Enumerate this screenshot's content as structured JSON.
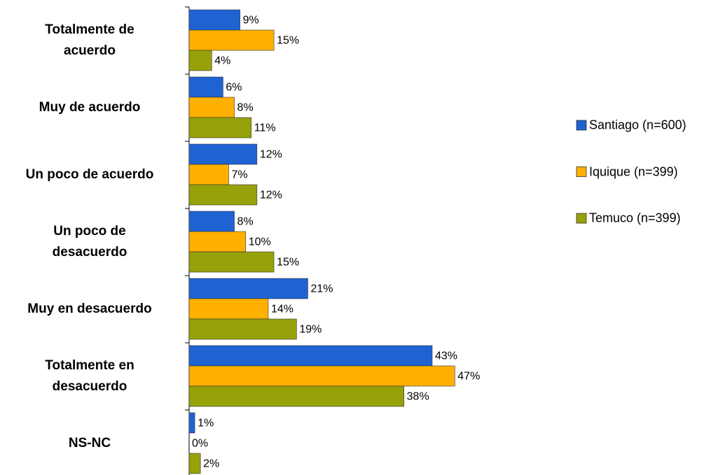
{
  "chart_data": {
    "type": "barh",
    "categories": [
      "Totalmente de\nacuerdo",
      "Muy de acuerdo",
      "Un poco de acuerdo",
      "Un poco de \ndesacuerdo",
      "Muy en desacuerdo",
      "Totalmente en\ndesacuerdo",
      "NS-NC"
    ],
    "series": [
      {
        "name": "Santiago (n=600)",
        "color": "#1f63d3",
        "values": [
          9,
          6,
          12,
          8,
          21,
          43,
          1
        ],
        "value_labels": [
          "9%",
          "6%",
          "12%",
          "8%",
          "21%",
          "43%",
          "1%"
        ]
      },
      {
        "name": "Iquique (n=399)",
        "color": "#ffb000",
        "values": [
          15,
          8,
          7,
          10,
          14,
          47,
          0
        ],
        "value_labels": [
          "15%",
          "8%",
          "7%",
          "10%",
          "14%",
          "47%",
          "0%"
        ]
      },
      {
        "name": "Temuco (n=399)",
        "color": "#97a10a",
        "values": [
          4,
          11,
          12,
          15,
          19,
          38,
          2
        ],
        "value_labels": [
          "4%",
          "11%",
          "12%",
          "15%",
          "19%",
          "38%",
          "2%"
        ]
      }
    ],
    "xlim": [
      0,
      50
    ],
    "legend": "right"
  }
}
